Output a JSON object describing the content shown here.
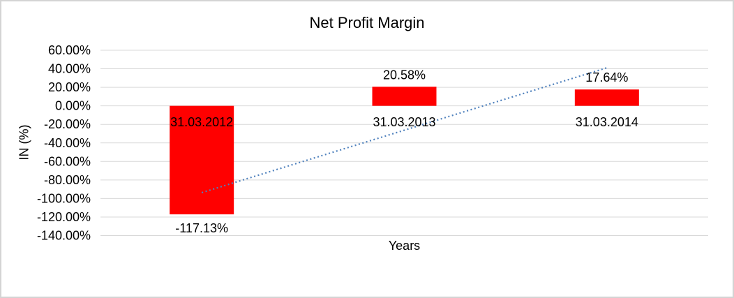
{
  "window": {
    "background_color": "#ffffff",
    "border_color": "#d4d4d4"
  },
  "chart_data": {
    "type": "bar",
    "title": "Net Profit Margin",
    "xlabel": "Years",
    "ylabel": "IN (%)",
    "categories": [
      "31.03.2012",
      "31.03.2013",
      "31.03.2014"
    ],
    "values": [
      -117.13,
      20.58,
      17.64
    ],
    "data_labels": [
      "-117.13%",
      "20.58%",
      "17.64%"
    ],
    "y_ticks": [
      60,
      40,
      20,
      0,
      -20,
      -40,
      -60,
      -80,
      -100,
      -120,
      -140
    ],
    "y_tick_labels": [
      "60.00%",
      "40.00%",
      "20.00%",
      "0.00%",
      "-20.00%",
      "-40.00%",
      "-60.00%",
      "-80.00%",
      "-100.00%",
      "-120.00%",
      "-140.00%"
    ],
    "ylim": [
      -140,
      60
    ],
    "grid": true,
    "legend_position": "none",
    "bar_color": "#FF0000",
    "gridline_color": "#D9D9D9",
    "text_color": "#000000",
    "trendline": {
      "type": "linear",
      "style": "dotted",
      "color": "#4F81BD"
    }
  }
}
